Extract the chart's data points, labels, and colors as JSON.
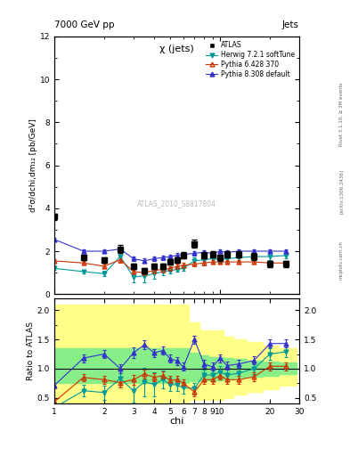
{
  "title_top": "7000 GeV pp",
  "title_right": "Jets",
  "plot_title": "χ (jets)",
  "watermark": "ATLAS_2010_S8817804",
  "rivet_label": "Rivet 3.1.10, ≥ 3M events",
  "arxiv_label": "[arXiv:1306.3436]",
  "mcplots_label": "mcplots.cern.ch",
  "ylabel_main": "d²σ/dchi,dm₁₂ [pb/GeV]",
  "ylabel_ratio": "Ratio to ATLAS",
  "xlabel": "chi",
  "xlim": [
    1,
    30
  ],
  "ylim_main": [
    0,
    12
  ],
  "ylim_ratio": [
    0.4,
    2.2
  ],
  "chi_x": [
    1.0,
    1.5,
    2.0,
    2.5,
    3.0,
    3.5,
    4.0,
    4.5,
    5.0,
    5.5,
    6.0,
    7.0,
    8.0,
    9.0,
    10.0,
    11.0,
    13.0,
    16.0,
    20.0,
    25.0
  ],
  "atlas_y": [
    3.6,
    1.7,
    1.6,
    2.1,
    1.3,
    1.1,
    1.3,
    1.3,
    1.5,
    1.6,
    1.8,
    2.35,
    1.8,
    1.85,
    1.7,
    1.85,
    1.85,
    1.75,
    1.4,
    1.4
  ],
  "atlas_yerr": [
    0.15,
    0.12,
    0.12,
    0.18,
    0.12,
    0.12,
    0.12,
    0.12,
    0.12,
    0.12,
    0.15,
    0.2,
    0.15,
    0.15,
    0.15,
    0.15,
    0.15,
    0.15,
    0.15,
    0.15
  ],
  "herwig_y": [
    1.2,
    1.05,
    0.95,
    1.75,
    0.8,
    0.85,
    0.95,
    1.05,
    1.1,
    1.15,
    1.2,
    1.55,
    1.6,
    1.65,
    1.6,
    1.65,
    1.7,
    1.75,
    1.75,
    1.8
  ],
  "herwig_yerr": [
    0.08,
    0.1,
    0.12,
    0.18,
    0.25,
    0.3,
    0.25,
    0.15,
    0.15,
    0.12,
    0.12,
    0.15,
    0.15,
    0.15,
    0.15,
    0.15,
    0.15,
    0.15,
    0.15,
    0.15
  ],
  "pythia6_y": [
    1.55,
    1.45,
    1.3,
    1.6,
    1.05,
    1.0,
    1.1,
    1.15,
    1.2,
    1.3,
    1.35,
    1.4,
    1.45,
    1.5,
    1.5,
    1.5,
    1.5,
    1.5,
    1.45,
    1.45
  ],
  "pythia6_yerr": [
    0.08,
    0.08,
    0.1,
    0.12,
    0.1,
    0.1,
    0.1,
    0.1,
    0.1,
    0.1,
    0.1,
    0.1,
    0.1,
    0.1,
    0.1,
    0.1,
    0.1,
    0.1,
    0.1,
    0.1
  ],
  "pythia8_y": [
    2.55,
    2.0,
    2.0,
    2.1,
    1.65,
    1.55,
    1.65,
    1.7,
    1.75,
    1.8,
    1.85,
    1.9,
    1.95,
    1.9,
    2.0,
    1.95,
    2.0,
    2.0,
    2.0,
    2.0
  ],
  "pythia8_yerr": [
    0.08,
    0.1,
    0.1,
    0.12,
    0.12,
    0.1,
    0.1,
    0.1,
    0.1,
    0.1,
    0.1,
    0.1,
    0.1,
    0.1,
    0.1,
    0.1,
    0.1,
    0.1,
    0.1,
    0.1
  ],
  "herwig_ratio": [
    0.33,
    0.62,
    0.59,
    0.83,
    0.62,
    0.77,
    0.73,
    0.81,
    0.73,
    0.72,
    0.67,
    0.66,
    0.89,
    0.89,
    0.94,
    0.89,
    0.92,
    1.0,
    1.25,
    1.29
  ],
  "herwig_ratio_err": [
    0.08,
    0.1,
    0.12,
    0.15,
    0.2,
    0.25,
    0.2,
    0.15,
    0.12,
    0.1,
    0.1,
    0.1,
    0.1,
    0.1,
    0.1,
    0.1,
    0.1,
    0.1,
    0.1,
    0.1
  ],
  "pythia6_ratio": [
    0.43,
    0.85,
    0.81,
    0.76,
    0.81,
    0.91,
    0.85,
    0.88,
    0.8,
    0.81,
    0.75,
    0.6,
    0.81,
    0.81,
    0.88,
    0.81,
    0.81,
    0.86,
    1.04,
    1.04
  ],
  "pythia6_ratio_err": [
    0.05,
    0.06,
    0.07,
    0.08,
    0.08,
    0.08,
    0.07,
    0.07,
    0.07,
    0.07,
    0.07,
    0.07,
    0.07,
    0.07,
    0.07,
    0.07,
    0.07,
    0.07,
    0.07,
    0.07
  ],
  "pythia8_ratio": [
    0.71,
    1.18,
    1.25,
    1.0,
    1.27,
    1.41,
    1.27,
    1.31,
    1.17,
    1.13,
    1.03,
    1.5,
    1.08,
    1.03,
    1.18,
    1.05,
    1.08,
    1.14,
    1.43,
    1.43
  ],
  "pythia8_ratio_err": [
    0.05,
    0.07,
    0.07,
    0.08,
    0.09,
    0.08,
    0.07,
    0.07,
    0.07,
    0.07,
    0.07,
    0.07,
    0.07,
    0.07,
    0.07,
    0.07,
    0.07,
    0.07,
    0.07,
    0.07
  ],
  "herwig_color": "#009999",
  "pythia6_color": "#cc3300",
  "pythia8_color": "#3333cc",
  "atlas_color": "#000000",
  "band_yellow_lo": [
    0.42,
    0.42,
    0.42,
    0.42,
    0.42,
    0.42,
    0.42,
    0.42,
    0.42,
    0.42,
    0.42,
    0.47,
    0.47,
    0.47,
    0.47,
    0.5,
    0.55,
    0.6,
    0.65,
    0.7
  ],
  "band_yellow_hi": [
    2.1,
    2.1,
    2.1,
    2.1,
    2.1,
    2.1,
    2.1,
    2.1,
    2.1,
    2.1,
    2.1,
    1.8,
    1.65,
    1.65,
    1.65,
    1.55,
    1.5,
    1.45,
    1.4,
    1.35
  ],
  "band_green_lo": [
    0.75,
    0.75,
    0.75,
    0.75,
    0.75,
    0.75,
    0.75,
    0.75,
    0.75,
    0.75,
    0.75,
    0.78,
    0.8,
    0.8,
    0.8,
    0.82,
    0.84,
    0.86,
    0.88,
    0.9
  ],
  "band_green_hi": [
    1.35,
    1.35,
    1.35,
    1.35,
    1.35,
    1.35,
    1.35,
    1.35,
    1.35,
    1.35,
    1.35,
    1.28,
    1.22,
    1.2,
    1.2,
    1.18,
    1.16,
    1.14,
    1.12,
    1.1
  ]
}
